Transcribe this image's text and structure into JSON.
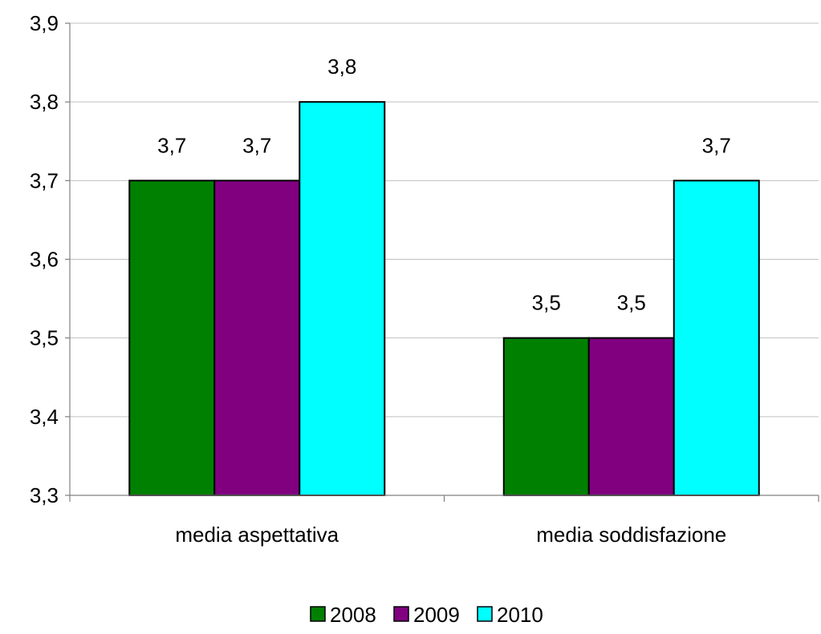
{
  "chart_data": {
    "type": "bar",
    "categories": [
      "media aspettativa",
      "media soddisfazione"
    ],
    "series": [
      {
        "name": "2008",
        "color": "#008000",
        "values": [
          3.7,
          3.5
        ]
      },
      {
        "name": "2009",
        "color": "#800080",
        "values": [
          3.7,
          3.5
        ]
      },
      {
        "name": "2010",
        "color": "#00ffff",
        "values": [
          3.8,
          3.7
        ]
      }
    ],
    "data_labels": [
      [
        "3,7",
        "3,5"
      ],
      [
        "3,7",
        "3,5"
      ],
      [
        "3,8",
        "3,7"
      ]
    ],
    "ylim": [
      3.3,
      3.9
    ],
    "yticks": [
      3.3,
      3.4,
      3.5,
      3.6,
      3.7,
      3.8,
      3.9
    ],
    "ytick_labels": [
      "3,3",
      "3,4",
      "3,5",
      "3,6",
      "3,7",
      "3,8",
      "3,9"
    ],
    "title": "",
    "xlabel": "",
    "ylabel": "",
    "grid": true,
    "legend_position": "bottom"
  }
}
